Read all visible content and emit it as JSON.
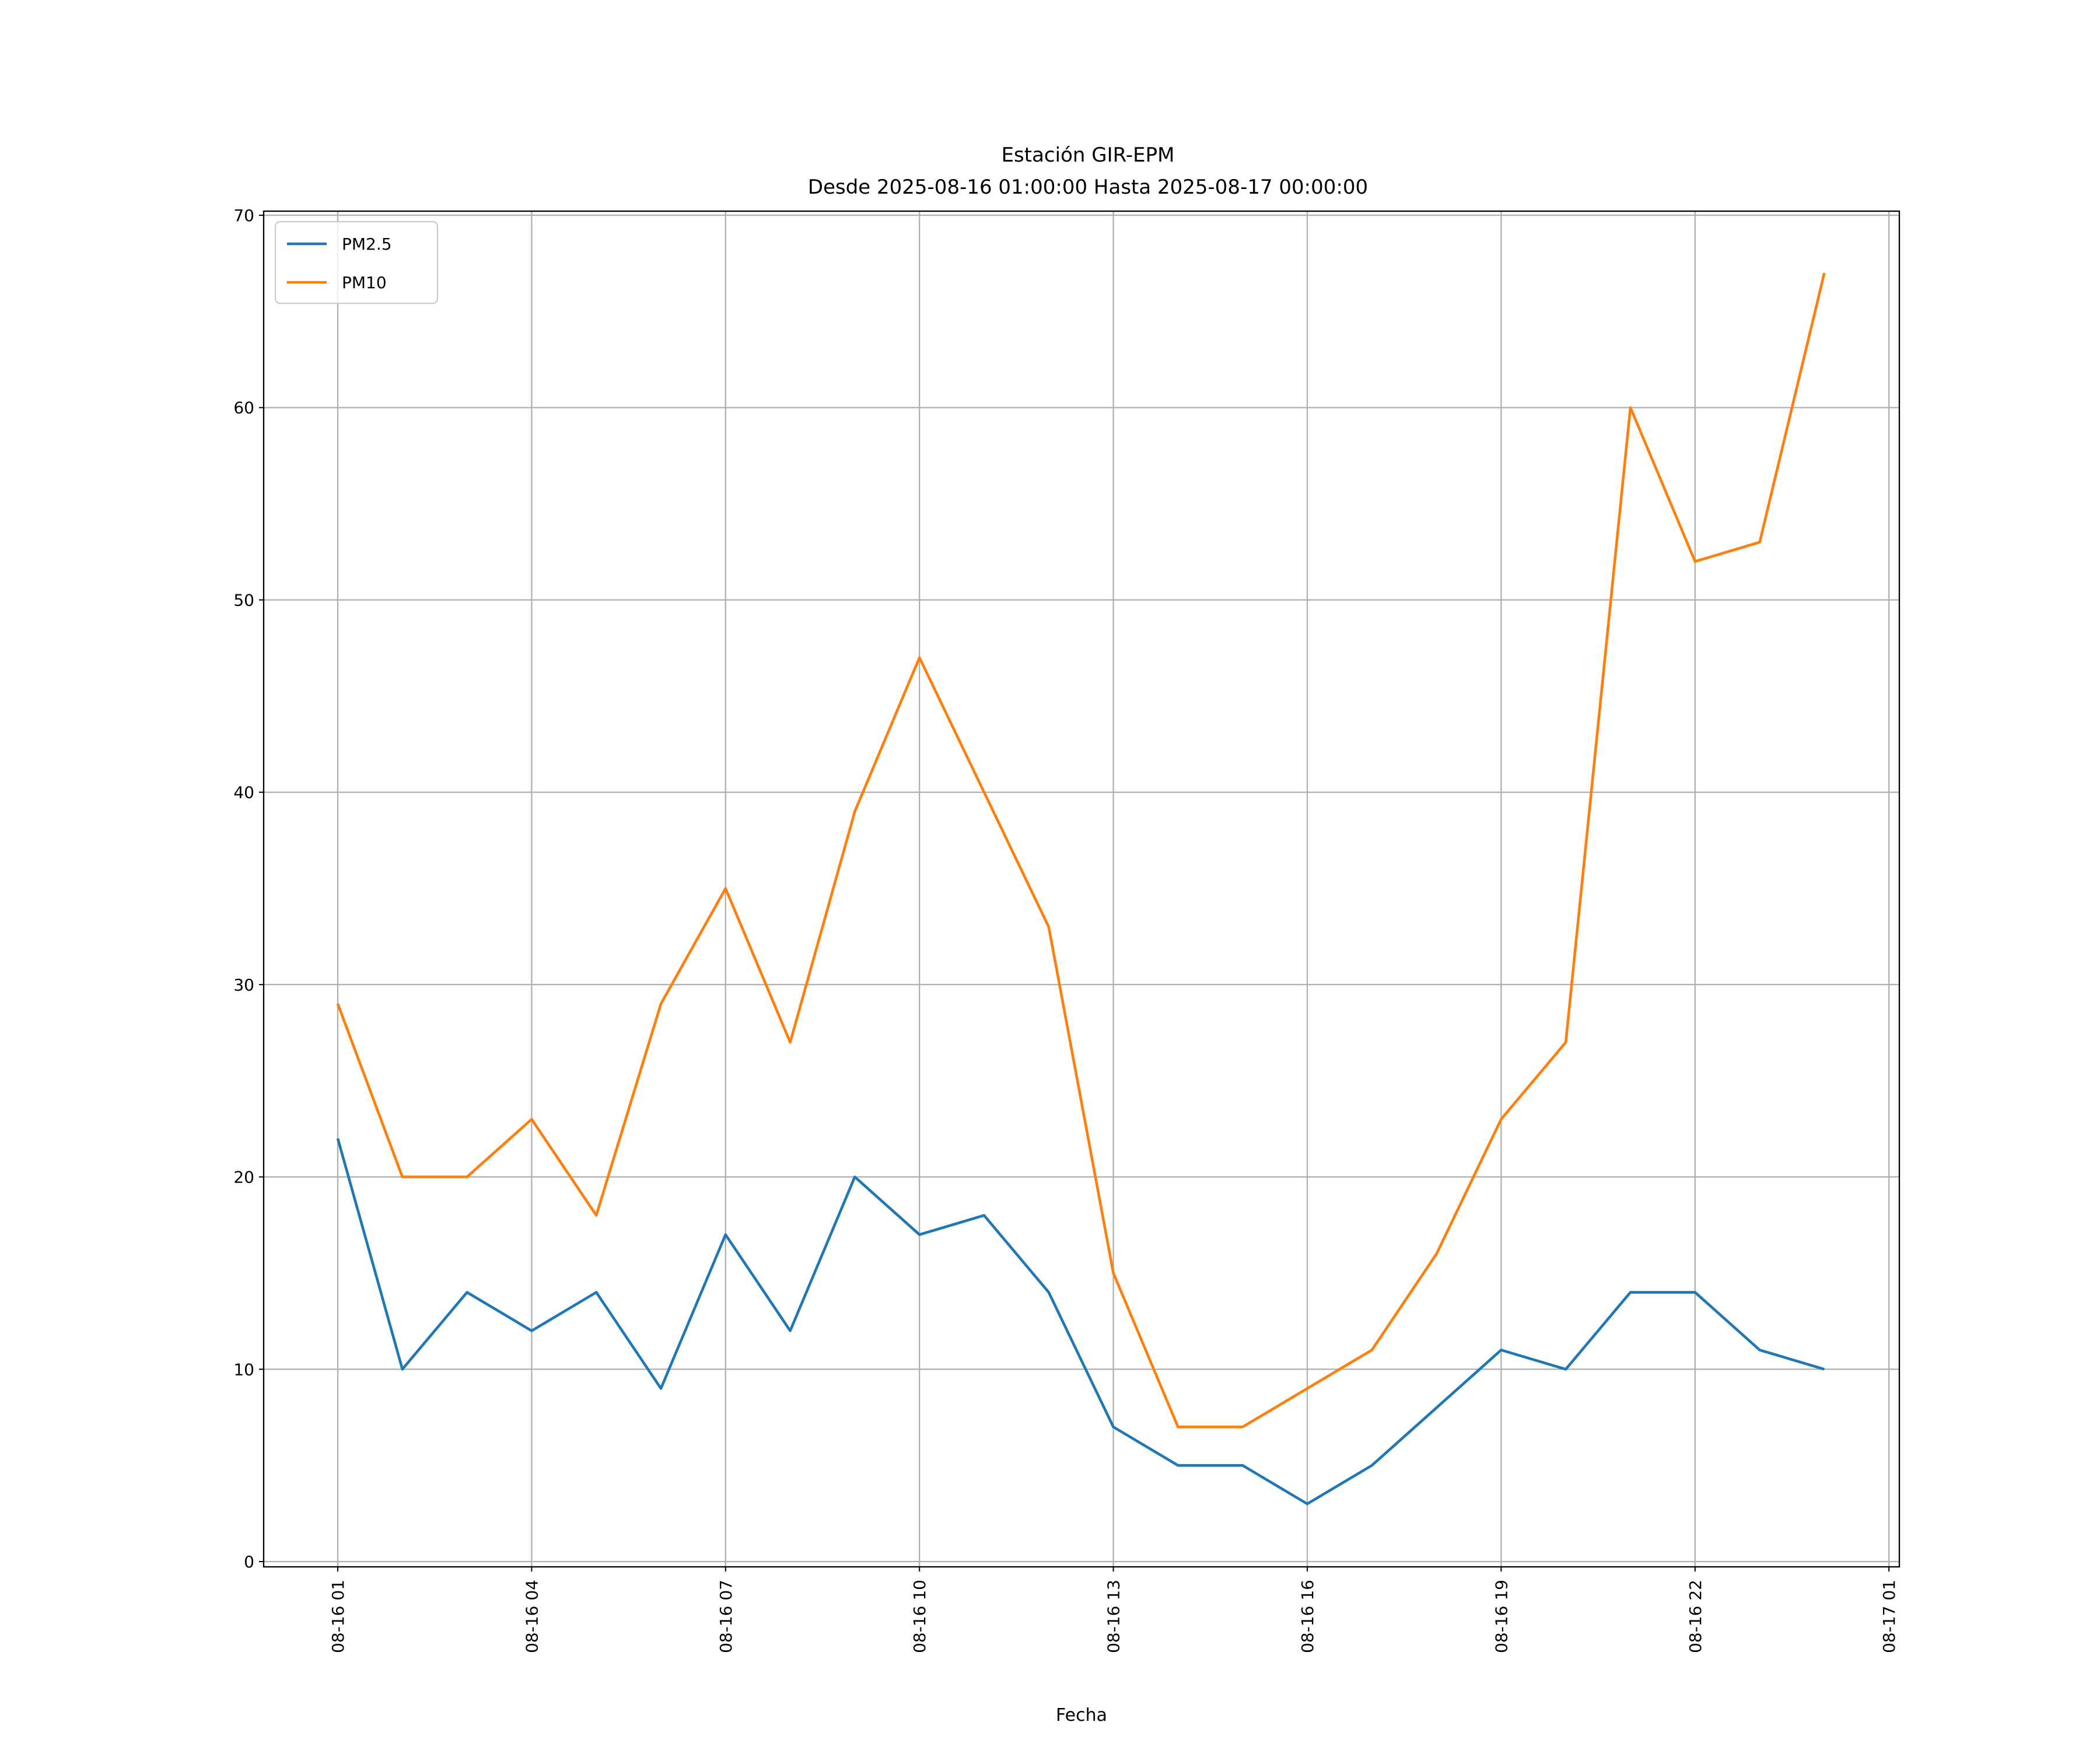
{
  "chart_data": {
    "type": "line",
    "title": "Estación GIR-EPM",
    "subtitle": "Desde 2025-08-16 01:00:00 Hasta 2025-08-17 00:00:00",
    "xlabel": "Fecha",
    "ylabel": "",
    "ylim": [
      0,
      70
    ],
    "yticks": [
      0,
      10,
      20,
      30,
      40,
      50,
      60,
      70
    ],
    "x_hours": [
      0,
      1,
      2,
      3,
      4,
      5,
      6,
      7,
      8,
      9,
      10,
      11,
      12,
      13,
      14,
      15,
      16,
      17,
      18,
      19,
      20,
      21,
      22,
      23
    ],
    "x_start": "2025-08-16 01:00:00",
    "xticks": [
      {
        "hour": 0,
        "label": "08-16 01"
      },
      {
        "hour": 3,
        "label": "08-16 04"
      },
      {
        "hour": 6,
        "label": "08-16 07"
      },
      {
        "hour": 9,
        "label": "08-16 10"
      },
      {
        "hour": 12,
        "label": "08-16 13"
      },
      {
        "hour": 15,
        "label": "08-16 16"
      },
      {
        "hour": 18,
        "label": "08-16 19"
      },
      {
        "hour": 21,
        "label": "08-16 22"
      },
      {
        "hour": 24,
        "label": "08-17 01"
      }
    ],
    "grid": true,
    "legend_position": "top-left",
    "series": [
      {
        "name": "PM2.5",
        "color": "#1f77b4",
        "values": [
          22,
          10,
          14,
          12,
          14,
          9,
          17,
          12,
          20,
          17,
          18,
          14,
          7,
          5,
          5,
          3,
          5,
          8,
          11,
          10,
          14,
          14,
          11,
          10
        ]
      },
      {
        "name": "PM10",
        "color": "#ff7f0e",
        "values": [
          29,
          20,
          20,
          23,
          18,
          29,
          35,
          27,
          39,
          47,
          40,
          33,
          15,
          7,
          7,
          9,
          11,
          16,
          23,
          27,
          60,
          52,
          53,
          67
        ]
      }
    ]
  }
}
